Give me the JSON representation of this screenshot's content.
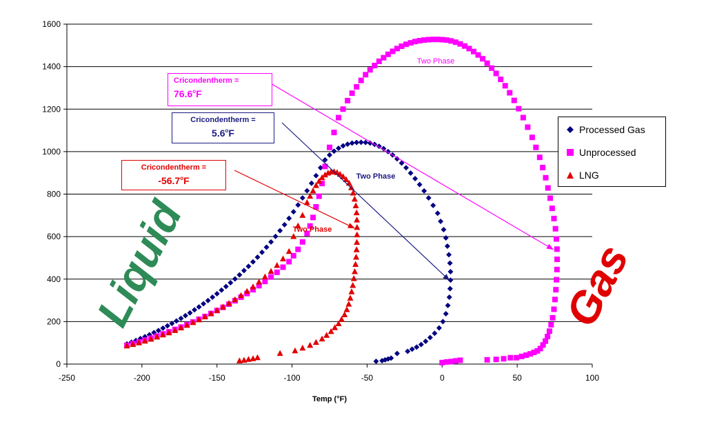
{
  "chart_data": {
    "type": "scatter",
    "xlabel": "Temp (°F)",
    "ylabel": "",
    "xlim": [
      -250,
      100
    ],
    "ylim": [
      0,
      1600
    ],
    "x_ticks": [
      -250,
      -200,
      -150,
      -100,
      -50,
      0,
      50,
      100
    ],
    "y_ticks": [
      0,
      200,
      400,
      600,
      800,
      1000,
      1200,
      1400,
      1600
    ],
    "grid": "horizontal",
    "legend_position": "right",
    "series": [
      {
        "name": "Processed Gas",
        "color": "#000080",
        "marker": "diamond",
        "x": [
          -210,
          -207,
          -204,
          -201,
          -198,
          -195,
          -192,
          -189,
          -186,
          -183,
          -180,
          -177,
          -174,
          -171,
          -168,
          -165,
          -162,
          -159,
          -156,
          -153,
          -150,
          -147,
          -144,
          -141,
          -138,
          -135,
          -132,
          -129,
          -126,
          -123,
          -120,
          -117,
          -114,
          -111,
          -108,
          -105,
          -102,
          -99,
          -96,
          -93,
          -90,
          -87,
          -84,
          -81,
          -78,
          -75,
          -72,
          -69,
          -66,
          -63,
          -60,
          -57,
          -54,
          -51,
          -48,
          -45,
          -42,
          -39,
          -36,
          -33,
          -30,
          -27,
          -24,
          -21,
          -18,
          -15,
          -12,
          -9,
          -6,
          -3,
          -1,
          1,
          2.5,
          3.5,
          4.5,
          5.2,
          5.6,
          5.6,
          5.3,
          4.8,
          3.8,
          2.5,
          0.5,
          -2,
          -5,
          -8,
          -11,
          -14,
          -17,
          -20,
          -23,
          -30,
          -34,
          -36,
          -38,
          -40,
          -44
        ],
        "y": [
          95,
          103,
          111,
          120,
          129,
          138,
          148,
          158,
          169,
          180,
          191,
          203,
          215,
          228,
          241,
          255,
          269,
          284,
          299,
          315,
          331,
          348,
          365,
          383,
          401,
          420,
          440,
          460,
          481,
          503,
          526,
          550,
          575,
          601,
          628,
          656,
          686,
          717,
          749,
          782,
          816,
          851,
          887,
          924,
          961,
          984,
          1002,
          1016,
          1027,
          1035,
          1040,
          1043,
          1044,
          1043,
          1040,
          1034,
          1025,
          1014,
          1000,
          984,
          966,
          946,
          924,
          899,
          873,
          845,
          815,
          782,
          747,
          710,
          672,
          633,
          594,
          555,
          515,
          475,
          435,
          395,
          355,
          315,
          276,
          237,
          200,
          170,
          145,
          125,
          107,
          92,
          80,
          70,
          60,
          50,
          28,
          24,
          20,
          16,
          13
        ]
      },
      {
        "name": "Unprocessed",
        "color": "#ff00ff",
        "marker": "square",
        "x": [
          -210,
          -206,
          -202,
          -198,
          -194,
          -190,
          -186,
          -182,
          -178,
          -174,
          -170,
          -166,
          -162,
          -158,
          -154,
          -150,
          -146,
          -142,
          -138,
          -134,
          -130,
          -126,
          -122,
          -118,
          -114,
          -110,
          -106,
          -102,
          -99,
          -96,
          -93,
          -90,
          -88,
          -86,
          -84,
          -82,
          -80,
          -78,
          -75,
          -72,
          -69,
          -66,
          -63,
          -60,
          -57,
          -54,
          -51,
          -48,
          -45,
          -42,
          -39,
          -36,
          -33,
          -30,
          -27,
          -24,
          -21,
          -18,
          -15,
          -12,
          -9,
          -6,
          -3,
          0,
          3,
          6,
          9,
          12,
          15,
          18,
          21,
          24,
          27,
          30,
          33,
          36,
          39,
          42,
          45,
          48,
          51,
          54,
          57,
          60,
          62.5,
          65,
          67,
          69,
          70.5,
          72,
          73.3,
          74.5,
          75.5,
          76.1,
          76.5,
          76.6,
          76.5,
          76.2,
          75.8,
          75.2,
          74.5,
          73.6,
          72.6,
          71.5,
          70.2,
          68.8,
          67.2,
          65.4,
          63.4,
          61.2,
          58.7,
          56,
          53,
          49.5,
          45.5,
          41,
          36,
          30,
          12,
          9,
          6,
          3,
          0
        ],
        "y": [
          88,
          96,
          104,
          113,
          122,
          132,
          142,
          152,
          163,
          174,
          186,
          198,
          211,
          224,
          238,
          252,
          267,
          282,
          298,
          315,
          332,
          350,
          369,
          389,
          410,
          432,
          456,
          482,
          510,
          540,
          575,
          615,
          650,
          690,
          740,
          790,
          850,
          930,
          1020,
          1090,
          1160,
          1200,
          1240,
          1275,
          1305,
          1335,
          1362,
          1385,
          1405,
          1425,
          1442,
          1458,
          1472,
          1485,
          1496,
          1505,
          1512,
          1518,
          1522,
          1525,
          1527,
          1528,
          1528,
          1527,
          1525,
          1521,
          1515,
          1507,
          1497,
          1485,
          1471,
          1455,
          1437,
          1416,
          1393,
          1368,
          1340,
          1310,
          1277,
          1241,
          1202,
          1160,
          1115,
          1067,
          1020,
          973,
          925,
          877,
          829,
          781,
          733,
          685,
          637,
          589,
          541,
          493,
          445,
          397,
          350,
          304,
          258,
          218,
          185,
          155,
          130,
          108,
          90,
          73,
          62,
          55,
          48,
          42,
          36,
          30,
          30,
          25,
          22,
          20,
          18,
          15,
          12,
          10,
          7
        ]
      },
      {
        "name": "LNG",
        "color": "#e00000",
        "marker": "triangle",
        "x": [
          -210,
          -206,
          -202,
          -198,
          -194,
          -190,
          -186,
          -182,
          -178,
          -174,
          -170,
          -166,
          -162,
          -158,
          -154,
          -150,
          -146,
          -142,
          -138,
          -134,
          -130,
          -126,
          -122,
          -118,
          -114,
          -110,
          -106,
          -102,
          -99,
          -96,
          -93,
          -90,
          -88,
          -86,
          -84,
          -82,
          -80,
          -78,
          -76,
          -74,
          -72,
          -70,
          -68,
          -66,
          -64,
          -62,
          -60.5,
          -59.3,
          -58.3,
          -57.5,
          -57,
          -56.8,
          -56.7,
          -56.7,
          -56.8,
          -57,
          -57.3,
          -57.7,
          -58.2,
          -58.8,
          -59.5,
          -60.3,
          -61.2,
          -62.2,
          -63.5,
          -65,
          -67,
          -69,
          -71.5,
          -74,
          -77,
          -80,
          -84,
          -88,
          -93,
          -98,
          -108,
          -123,
          -126,
          -129,
          -132,
          -135
        ],
        "y": [
          85,
          92,
          100,
          108,
          117,
          127,
          137,
          147,
          158,
          170,
          182,
          195,
          208,
          222,
          237,
          252,
          268,
          285,
          303,
          322,
          342,
          363,
          386,
          410,
          436,
          464,
          495,
          530,
          600,
          650,
          700,
          760,
          790,
          815,
          840,
          860,
          877,
          890,
          899,
          904,
          905,
          901,
          893,
          882,
          868,
          851,
          830,
          805,
          776,
          745,
          712,
          678,
          643,
          608,
          573,
          538,
          503,
          469,
          435,
          402,
          370,
          340,
          310,
          282,
          256,
          232,
          210,
          190,
          171,
          153,
          135,
          118,
          102,
          88,
          75,
          62,
          50,
          30,
          25,
          22,
          18,
          15
        ]
      }
    ],
    "annotations": [
      {
        "title": "Cricondentherm =",
        "value": "76.6",
        "unit": "F",
        "color": "#ff00ff",
        "label": "Two Phase"
      },
      {
        "title": "Cricondentherm =",
        "value": "5.6",
        "unit": "F",
        "color": "#1a1a80",
        "label": "Two Phase"
      },
      {
        "title": "Cricondentherm =",
        "value": "-56.7",
        "unit": "F",
        "color": "#e00000",
        "label": "Two Phase"
      }
    ],
    "region_labels": [
      {
        "text": "Liquid",
        "color": "#2e8b57"
      },
      {
        "text": "Gas",
        "color": "#e00000"
      }
    ]
  }
}
